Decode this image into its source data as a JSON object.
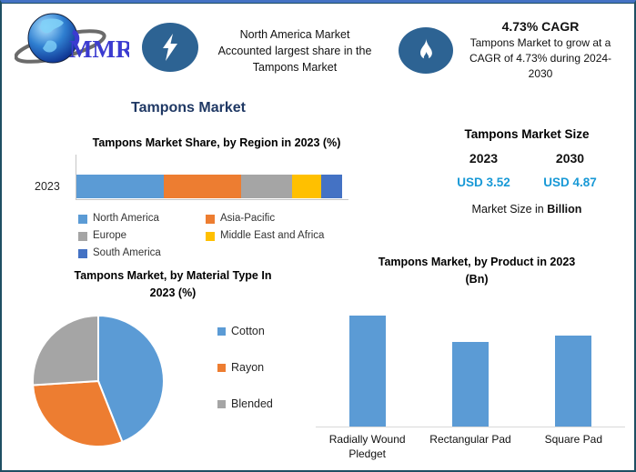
{
  "page": {
    "title": "Tampons Market"
  },
  "header": {
    "logo": {
      "text": "MMR"
    },
    "fact1": {
      "icon": "lightning-icon",
      "text": "North America Market\nAccounted largest share in the\nTampons Market"
    },
    "fact2": {
      "icon": "flame-icon",
      "title": "4.73% CAGR",
      "text": "Tampons Market to grow at a\nCAGR of 4.73% during 2024-\n2030"
    }
  },
  "market_size": {
    "title": "Tampons Market Size",
    "columns": [
      {
        "year": "2023",
        "value": "USD 3.52"
      },
      {
        "year": "2030",
        "value": "USD 4.87"
      }
    ],
    "caption_text": "Market Size in",
    "caption_bold": "Billion",
    "value_color": "#1899D6"
  },
  "chart_data": [
    {
      "id": "region-share",
      "type": "bar",
      "variant": "horizontal-stacked",
      "title": "Tampons Market Share, by Region in 2023 (%)",
      "categories": [
        "2023"
      ],
      "series": [
        {
          "name": "North America",
          "color": "#5B9BD5",
          "values": [
            33
          ]
        },
        {
          "name": "Asia-Pacific",
          "color": "#ED7D31",
          "values": [
            29
          ]
        },
        {
          "name": "Europe",
          "color": "#A5A5A5",
          "values": [
            19
          ]
        },
        {
          "name": "Middle East and Africa",
          "color": "#FFC000",
          "values": [
            11
          ]
        },
        {
          "name": "South America",
          "color": "#4472C4",
          "values": [
            8
          ]
        }
      ],
      "xlim": [
        0,
        100
      ],
      "grid": false,
      "legend_position": "bottom"
    },
    {
      "id": "material-type",
      "type": "pie",
      "title": "Tampons Market, by Material Type In\n2023 (%)",
      "labels": [
        "Cotton",
        "Rayon",
        "Blended"
      ],
      "values": [
        44,
        30,
        26
      ],
      "colors": [
        "#5B9BD5",
        "#ED7D31",
        "#A5A5A5"
      ],
      "start_angle_deg": 0,
      "direction": "clockwise",
      "legend_position": "right"
    },
    {
      "id": "product",
      "type": "bar",
      "title": "Tampons Market, by Product in 2023\n(Bn)",
      "categories": [
        "Radially Wound Pledget",
        "Rectangular Pad",
        "Square Pad"
      ],
      "values": [
        1.21,
        0.92,
        0.99
      ],
      "ylim": [
        0,
        1.45
      ],
      "bar_color": "#5B9BD5",
      "grid": false,
      "legend_position": "none"
    }
  ]
}
